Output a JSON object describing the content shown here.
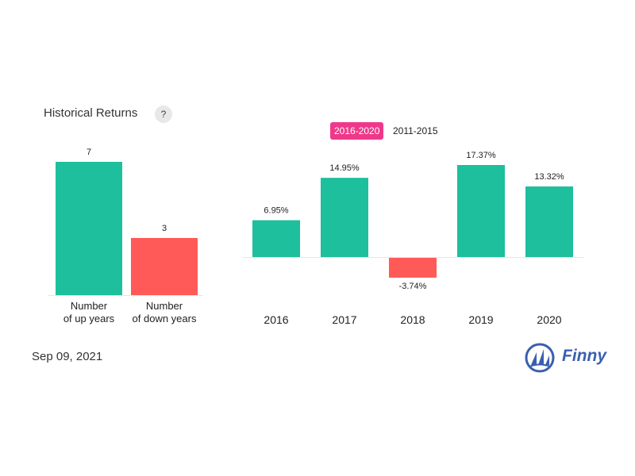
{
  "header": {
    "title": "Historical Returns",
    "help_icon": "question-mark-icon",
    "help_glyph": "?"
  },
  "tabs": [
    {
      "label": "2016-2020",
      "active": true
    },
    {
      "label": "2011-2015",
      "active": false
    }
  ],
  "colors": {
    "positive": "#1dbf9c",
    "negative": "#ff5a57",
    "tab_active": "#f0388a",
    "brand": "#3a5fb0"
  },
  "chart_data": [
    {
      "type": "bar",
      "title": "",
      "categories": [
        "Number\nof up years",
        "Number\nof down years"
      ],
      "values": [
        7,
        3
      ],
      "data_labels": [
        "7",
        "3"
      ],
      "ylim": [
        0,
        7
      ],
      "grid": false
    },
    {
      "type": "bar",
      "title": "Historical Returns 2016-2020",
      "categories": [
        "2016",
        "2017",
        "2018",
        "2019",
        "2020"
      ],
      "values": [
        6.95,
        14.95,
        -3.74,
        17.37,
        13.32
      ],
      "data_labels": [
        "6.95%",
        "14.95%",
        "-3.74%",
        "17.37%",
        "13.32%"
      ],
      "unit": "%",
      "grid": false
    }
  ],
  "footer": {
    "date": "Sep 09, 2021",
    "brand_name": "Finny",
    "logo_icon": "sailboat-logo-icon"
  }
}
